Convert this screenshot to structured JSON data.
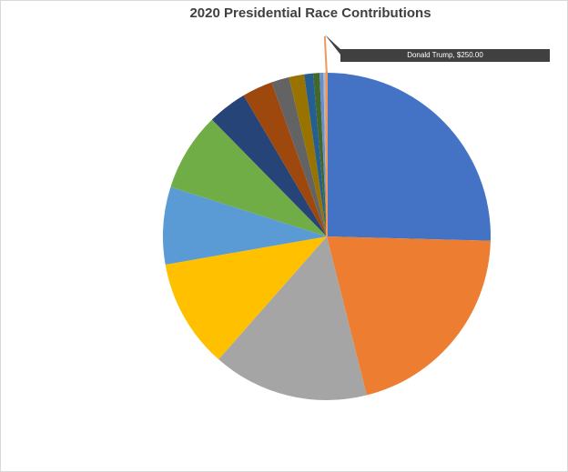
{
  "chart_data": {
    "type": "pie",
    "title": "2020 Presidential Race Contributions",
    "categories": [
      null,
      null,
      null,
      null,
      null,
      null,
      null,
      null,
      null,
      null,
      null,
      null,
      null,
      null,
      null
    ],
    "values": [
      203000,
      165000,
      123000,
      86000,
      61000,
      62000,
      31000,
      24000,
      14000,
      12000,
      7000,
      5000,
      3000,
      2400,
      250
    ],
    "value_labels": [
      null,
      null,
      null,
      null,
      null,
      null,
      null,
      null,
      null,
      null,
      null,
      null,
      null,
      null,
      "Donald  Trump, $250.00"
    ],
    "colors": [
      "#4472c4",
      "#ed7d31",
      "#a5a5a5",
      "#ffc000",
      "#5b9bd5",
      "#70ad47",
      "#264478",
      "#9e480e",
      "#636363",
      "#997300",
      "#255e91",
      "#43682b",
      "#698ed0",
      "#b7b7b7",
      "#f1975a"
    ]
  }
}
